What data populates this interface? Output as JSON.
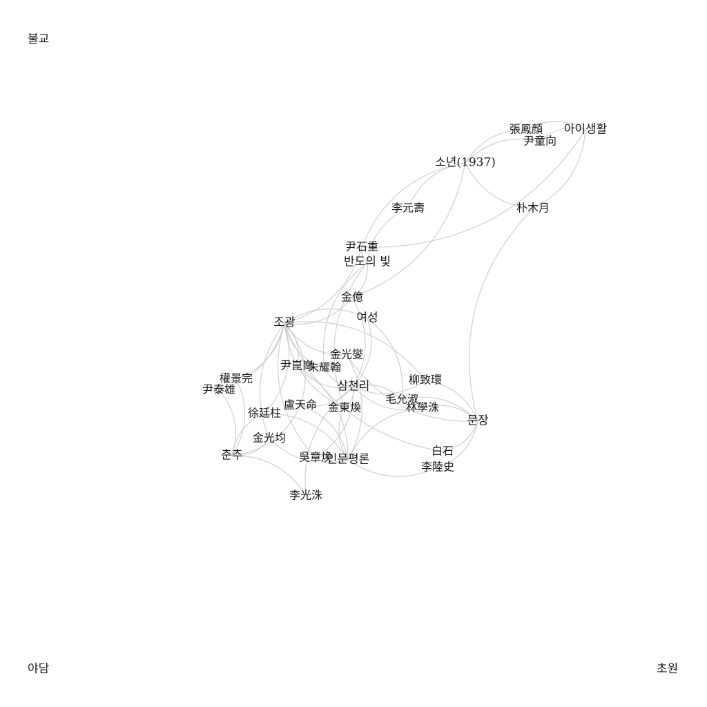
{
  "corners": {
    "top_left": "불교",
    "bottom_left": "야담",
    "bottom_right": "초원"
  },
  "graph": {
    "nodes": [
      {
        "id": "sonyeon",
        "label": "소년(1937)",
        "kind": "magazine"
      },
      {
        "id": "aisaenghwal",
        "label": "아이생활",
        "kind": "magazine"
      },
      {
        "id": "bandoui",
        "label": "반도의 빛",
        "kind": "magazine"
      },
      {
        "id": "jogwang",
        "label": "조광",
        "kind": "magazine"
      },
      {
        "id": "yeoseong",
        "label": "여성",
        "kind": "magazine"
      },
      {
        "id": "samcheolli",
        "label": "삼천리",
        "kind": "magazine"
      },
      {
        "id": "munjang",
        "label": "문장",
        "kind": "magazine"
      },
      {
        "id": "chunchu",
        "label": "춘추",
        "kind": "magazine"
      },
      {
        "id": "inmun",
        "label": "인문평론",
        "kind": "magazine"
      },
      {
        "id": "zhang",
        "label": "張鳳顔",
        "kind": "author"
      },
      {
        "id": "yundonghyang",
        "label": "尹童向",
        "kind": "author"
      },
      {
        "id": "parkmokwol",
        "label": "朴木月",
        "kind": "author"
      },
      {
        "id": "leewonsu",
        "label": "李元壽",
        "kind": "author"
      },
      {
        "id": "yunseokjung",
        "label": "尹石重",
        "kind": "author"
      },
      {
        "id": "kimeok",
        "label": "金億",
        "kind": "author"
      },
      {
        "id": "kimgwangseop",
        "label": "金光燮",
        "kind": "author"
      },
      {
        "id": "yungonkang",
        "label": "尹崑崗",
        "kind": "author"
      },
      {
        "id": "juyohan",
        "label": "朱耀翰",
        "kind": "author"
      },
      {
        "id": "gwongyeongwan",
        "label": "權景完",
        "kind": "author"
      },
      {
        "id": "yuntaeung",
        "label": "尹泰雄",
        "kind": "author"
      },
      {
        "id": "nocheonmyeong",
        "label": "盧天命",
        "kind": "author"
      },
      {
        "id": "kimdonghwan",
        "label": "金東煥",
        "kind": "author"
      },
      {
        "id": "seojeongju",
        "label": "徐廷柱",
        "kind": "author"
      },
      {
        "id": "kimgwanggyun",
        "label": "金光均",
        "kind": "author"
      },
      {
        "id": "ojanghwan",
        "label": "吳章煥",
        "kind": "author"
      },
      {
        "id": "leegwangsu",
        "label": "李光洙",
        "kind": "author"
      },
      {
        "id": "ryuchihwan",
        "label": "柳致環",
        "kind": "author"
      },
      {
        "id": "moyunsuk",
        "label": "毛允淑",
        "kind": "author"
      },
      {
        "id": "imhaksu",
        "label": "林學洙",
        "kind": "author"
      },
      {
        "id": "baekseok",
        "label": "白石",
        "kind": "author"
      },
      {
        "id": "leeyuksa",
        "label": "李陸史",
        "kind": "author"
      }
    ],
    "edges": [
      [
        "zhang",
        "sonyeon"
      ],
      [
        "zhang",
        "aisaenghwal"
      ],
      [
        "yundonghyang",
        "sonyeon"
      ],
      [
        "yundonghyang",
        "aisaenghwal"
      ],
      [
        "parkmokwol",
        "aisaenghwal"
      ],
      [
        "parkmokwol",
        "sonyeon"
      ],
      [
        "parkmokwol",
        "munjang"
      ],
      [
        "leewonsu",
        "sonyeon"
      ],
      [
        "leewonsu",
        "bandoui"
      ],
      [
        "yunseokjung",
        "sonyeon"
      ],
      [
        "yunseokjung",
        "bandoui"
      ],
      [
        "yunseokjung",
        "jogwang"
      ],
      [
        "yunseokjung",
        "aisaenghwal"
      ],
      [
        "kimeok",
        "jogwang"
      ],
      [
        "kimeok",
        "bandoui"
      ],
      [
        "kimeok",
        "samcheolli"
      ],
      [
        "kimeok",
        "sonyeon"
      ],
      [
        "kimgwangseop",
        "jogwang"
      ],
      [
        "kimgwangseop",
        "munjang"
      ],
      [
        "kimgwangseop",
        "inmun"
      ],
      [
        "yungonkang",
        "jogwang"
      ],
      [
        "yungonkang",
        "inmun"
      ],
      [
        "yungonkang",
        "samcheolli"
      ],
      [
        "juyohan",
        "jogwang"
      ],
      [
        "juyohan",
        "samcheolli"
      ],
      [
        "juyohan",
        "bandoui"
      ],
      [
        "gwongyeongwan",
        "jogwang"
      ],
      [
        "gwongyeongwan",
        "chunchu"
      ],
      [
        "yuntaeung",
        "jogwang"
      ],
      [
        "yuntaeung",
        "chunchu"
      ],
      [
        "nocheonmyeong",
        "jogwang"
      ],
      [
        "nocheonmyeong",
        "inmun"
      ],
      [
        "nocheonmyeong",
        "samcheolli"
      ],
      [
        "nocheonmyeong",
        "chunchu"
      ],
      [
        "kimdonghwan",
        "samcheolli"
      ],
      [
        "kimdonghwan",
        "jogwang"
      ],
      [
        "kimdonghwan",
        "inmun"
      ],
      [
        "kimdonghwan",
        "bandoui"
      ],
      [
        "seojeongju",
        "jogwang"
      ],
      [
        "seojeongju",
        "inmun"
      ],
      [
        "seojeongju",
        "chunchu"
      ],
      [
        "kimgwanggyun",
        "jogwang"
      ],
      [
        "kimgwanggyun",
        "inmun"
      ],
      [
        "kimgwanggyun",
        "chunchu"
      ],
      [
        "ojanghwan",
        "inmun"
      ],
      [
        "ojanghwan",
        "jogwang"
      ],
      [
        "ojanghwan",
        "samcheolli"
      ],
      [
        "leegwangsu",
        "samcheolli"
      ],
      [
        "leegwangsu",
        "chunchu"
      ],
      [
        "ryuchihwan",
        "munjang"
      ],
      [
        "ryuchihwan",
        "jogwang"
      ],
      [
        "ryuchihwan",
        "samcheolli"
      ],
      [
        "moyunsuk",
        "samcheolli"
      ],
      [
        "moyunsuk",
        "munjang"
      ],
      [
        "moyunsuk",
        "yeoseong"
      ],
      [
        "imhaksu",
        "munjang"
      ],
      [
        "imhaksu",
        "inmun"
      ],
      [
        "imhaksu",
        "samcheolli"
      ],
      [
        "baekseok",
        "munjang"
      ],
      [
        "baekseok",
        "jogwang"
      ],
      [
        "leeyuksa",
        "munjang"
      ],
      [
        "leeyuksa",
        "inmun"
      ],
      [
        "yeoseong",
        "jogwang"
      ],
      [
        "yeoseong",
        "samcheolli"
      ]
    ]
  }
}
